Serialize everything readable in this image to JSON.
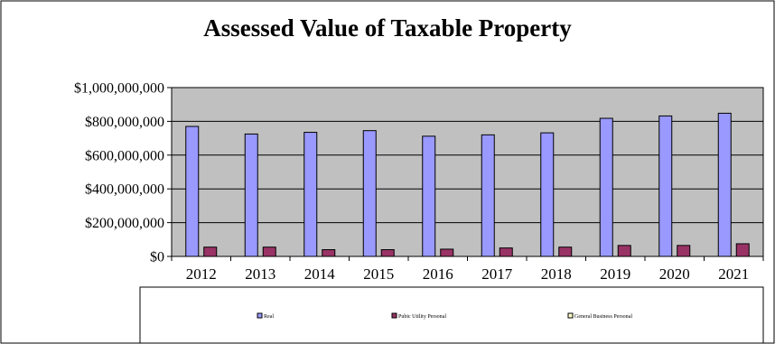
{
  "chart_data": {
    "type": "bar",
    "title": "Assessed Value of Taxable Property",
    "categories": [
      "2012",
      "2013",
      "2014",
      "2015",
      "2016",
      "2017",
      "2018",
      "2019",
      "2020",
      "2021"
    ],
    "y_tick_labels": [
      "$0",
      "$200,000,000",
      "$400,000,000",
      "$600,000,000",
      "$800,000,000",
      "$1,000,000,000"
    ],
    "ylim": [
      0,
      1000000000
    ],
    "grid": true,
    "legend_position": "bottom",
    "series": [
      {
        "name": "Real",
        "color": "#9999ff",
        "values": [
          770000000,
          725000000,
          735000000,
          745000000,
          712000000,
          720000000,
          732000000,
          818000000,
          832000000,
          848000000
        ]
      },
      {
        "name": "Pubic Utility Personal",
        "color": "#993366",
        "values": [
          55000000,
          55000000,
          40000000,
          40000000,
          43000000,
          50000000,
          55000000,
          65000000,
          65000000,
          75000000
        ]
      },
      {
        "name": "General Business Personal",
        "color": "#ffffcc",
        "values": [
          0,
          0,
          0,
          0,
          0,
          0,
          0,
          0,
          0,
          0
        ]
      }
    ]
  }
}
